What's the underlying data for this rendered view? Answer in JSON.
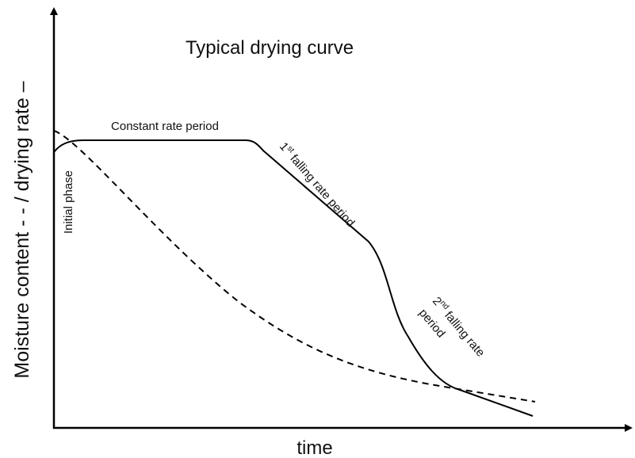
{
  "title": "Typical drying curve",
  "y_axis_label": "Moisture content - - / drying rate –",
  "x_axis_label": "time",
  "annotations": {
    "constant": "Constant rate period",
    "initial": "Initial phase",
    "first": {
      "number": "1",
      "suffix": "st",
      "text": " falling rate period"
    },
    "second": {
      "number": "2",
      "suffix": "nd",
      "text": " falling rate",
      "line2": "period"
    }
  }
}
